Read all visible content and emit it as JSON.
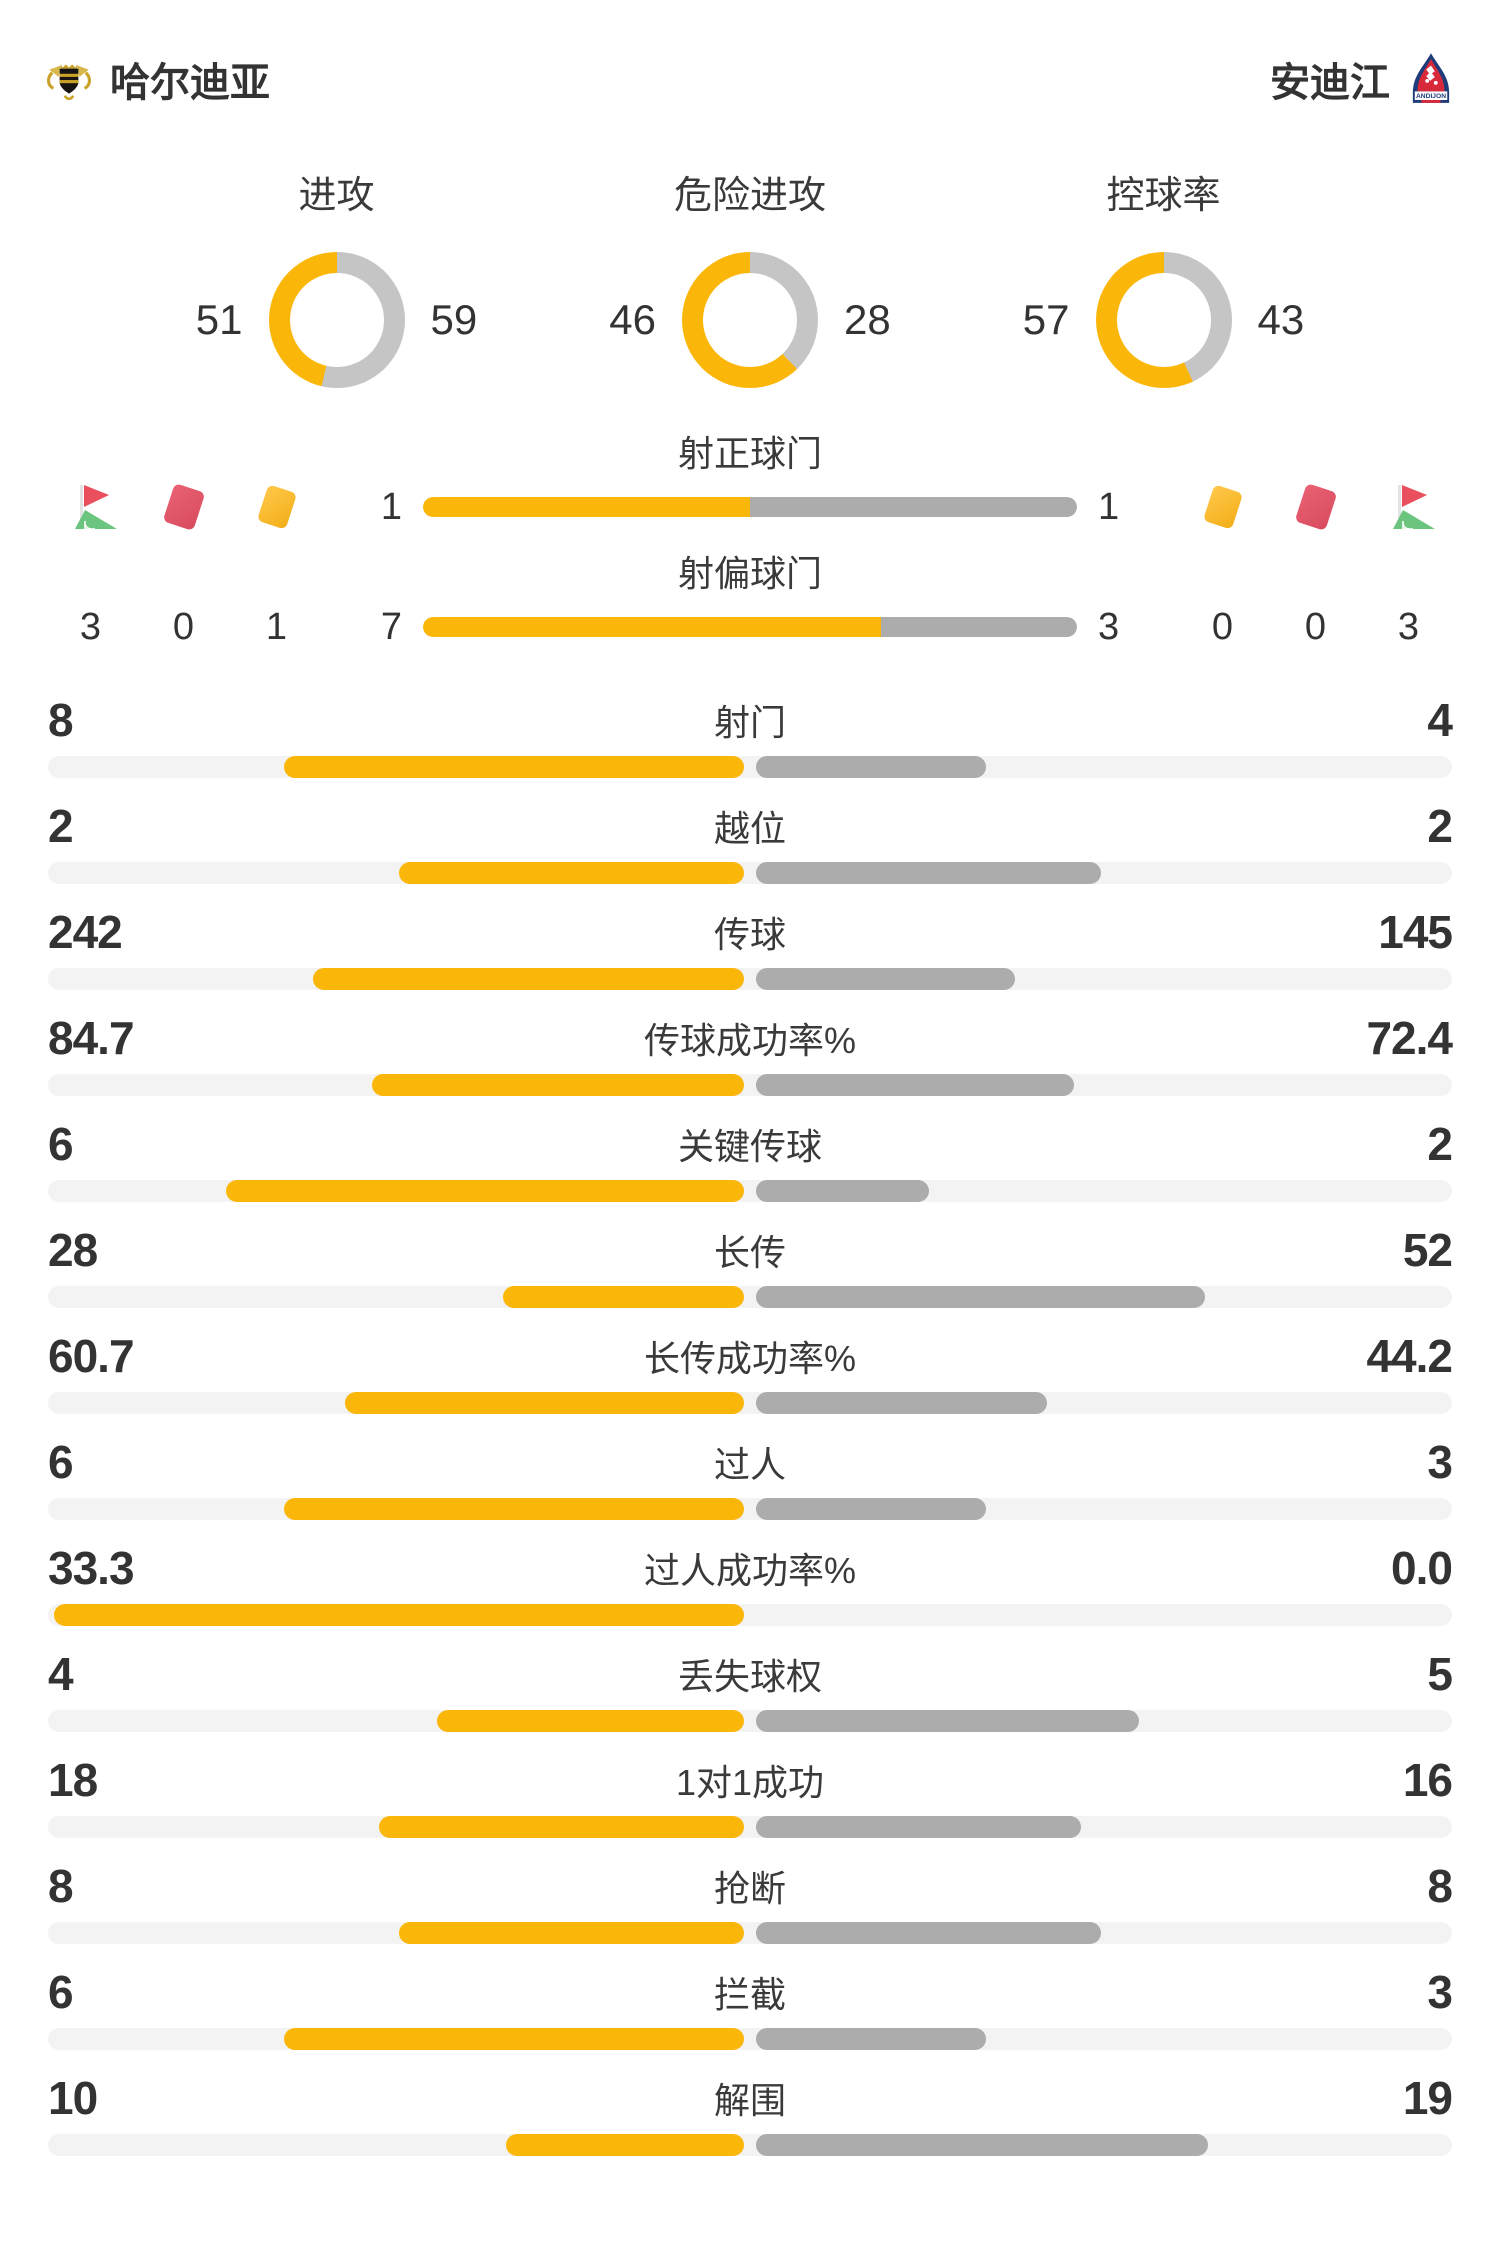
{
  "colors": {
    "accent": "#FBB60A",
    "donut_gray": "#C5C5C5",
    "bar_gray": "#ACACAC",
    "track_gray": "#F3F3F3",
    "text": "#333333",
    "card_red": "#E25566",
    "card_yellow": "#F8BE3C",
    "flag_red": "#EA4F5E",
    "flag_green": "#6CC57E"
  },
  "header": {
    "home_name": "哈尔迪亚",
    "away_name": "安迪江",
    "home_logo": "haldia-crest",
    "away_logo": "andijon-badge",
    "away_badge_text": "ANDIJON"
  },
  "donuts": [
    {
      "title": "进攻",
      "home": 51,
      "away": 59
    },
    {
      "title": "危险进攻",
      "home": 46,
      "away": 28
    },
    {
      "title": "控球率",
      "home": 57,
      "away": 43
    }
  ],
  "shots": {
    "rows": [
      {
        "label": "射正球门",
        "home": 1,
        "away": 1
      },
      {
        "label": "射偏球门",
        "home": 7,
        "away": 3
      }
    ],
    "home_side": {
      "icons": [
        "corner-flag",
        "red-card",
        "yellow-card"
      ],
      "values": [
        3,
        0,
        1
      ]
    },
    "away_side": {
      "icons": [
        "yellow-card",
        "red-card",
        "corner-flag"
      ],
      "values": [
        0,
        0,
        3
      ]
    }
  },
  "stats": [
    {
      "label": "射门",
      "home": "8",
      "away": "4"
    },
    {
      "label": "越位",
      "home": "2",
      "away": "2"
    },
    {
      "label": "传球",
      "home": "242",
      "away": "145"
    },
    {
      "label": "传球成功率%",
      "home": "84.7",
      "away": "72.4"
    },
    {
      "label": "关键传球",
      "home": "6",
      "away": "2"
    },
    {
      "label": "长传",
      "home": "28",
      "away": "52"
    },
    {
      "label": "长传成功率%",
      "home": "60.7",
      "away": "44.2"
    },
    {
      "label": "过人",
      "home": "6",
      "away": "3"
    },
    {
      "label": "过人成功率%",
      "home": "33.3",
      "away": "0.0"
    },
    {
      "label": "丢失球权",
      "home": "4",
      "away": "5"
    },
    {
      "label": "1对1成功",
      "home": "18",
      "away": "16"
    },
    {
      "label": "抢断",
      "home": "8",
      "away": "8"
    },
    {
      "label": "拦截",
      "home": "6",
      "away": "3"
    },
    {
      "label": "解围",
      "home": "10",
      "away": "19"
    }
  ]
}
